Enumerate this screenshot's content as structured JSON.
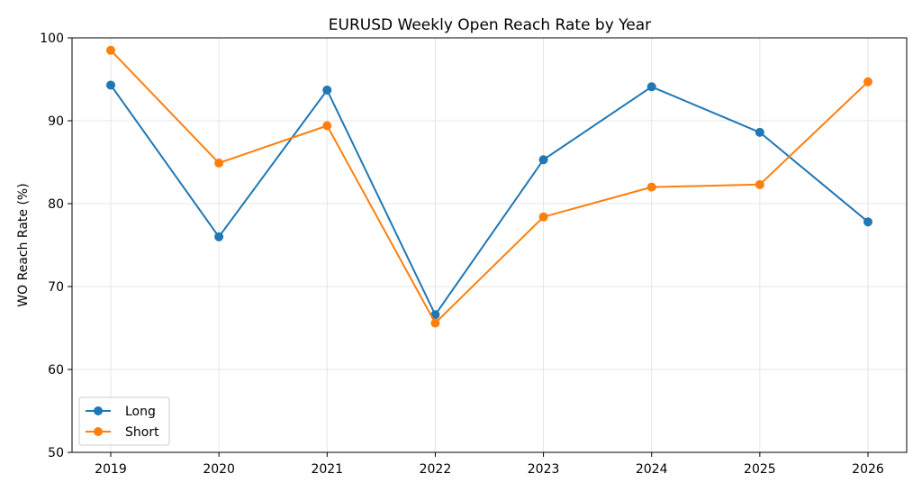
{
  "chart_data": {
    "type": "line",
    "title": "EURUSD Weekly Open Reach Rate by Year",
    "xlabel": "",
    "ylabel": "WO Reach Rate (%)",
    "categories": [
      "2019",
      "2020",
      "2021",
      "2022",
      "2023",
      "2024",
      "2025",
      "2026"
    ],
    "ylim": [
      50,
      100
    ],
    "yticks": [
      50,
      60,
      70,
      80,
      90,
      100
    ],
    "grid": true,
    "legend_position": "lower-left",
    "series": [
      {
        "name": "Long",
        "color": "#1f77b4",
        "values": [
          94.3,
          76.0,
          93.7,
          66.6,
          85.3,
          94.1,
          88.6,
          77.8
        ]
      },
      {
        "name": "Short",
        "color": "#ff7f0e",
        "values": [
          98.5,
          84.9,
          89.4,
          65.6,
          78.4,
          82.0,
          82.3,
          94.7
        ]
      }
    ]
  }
}
